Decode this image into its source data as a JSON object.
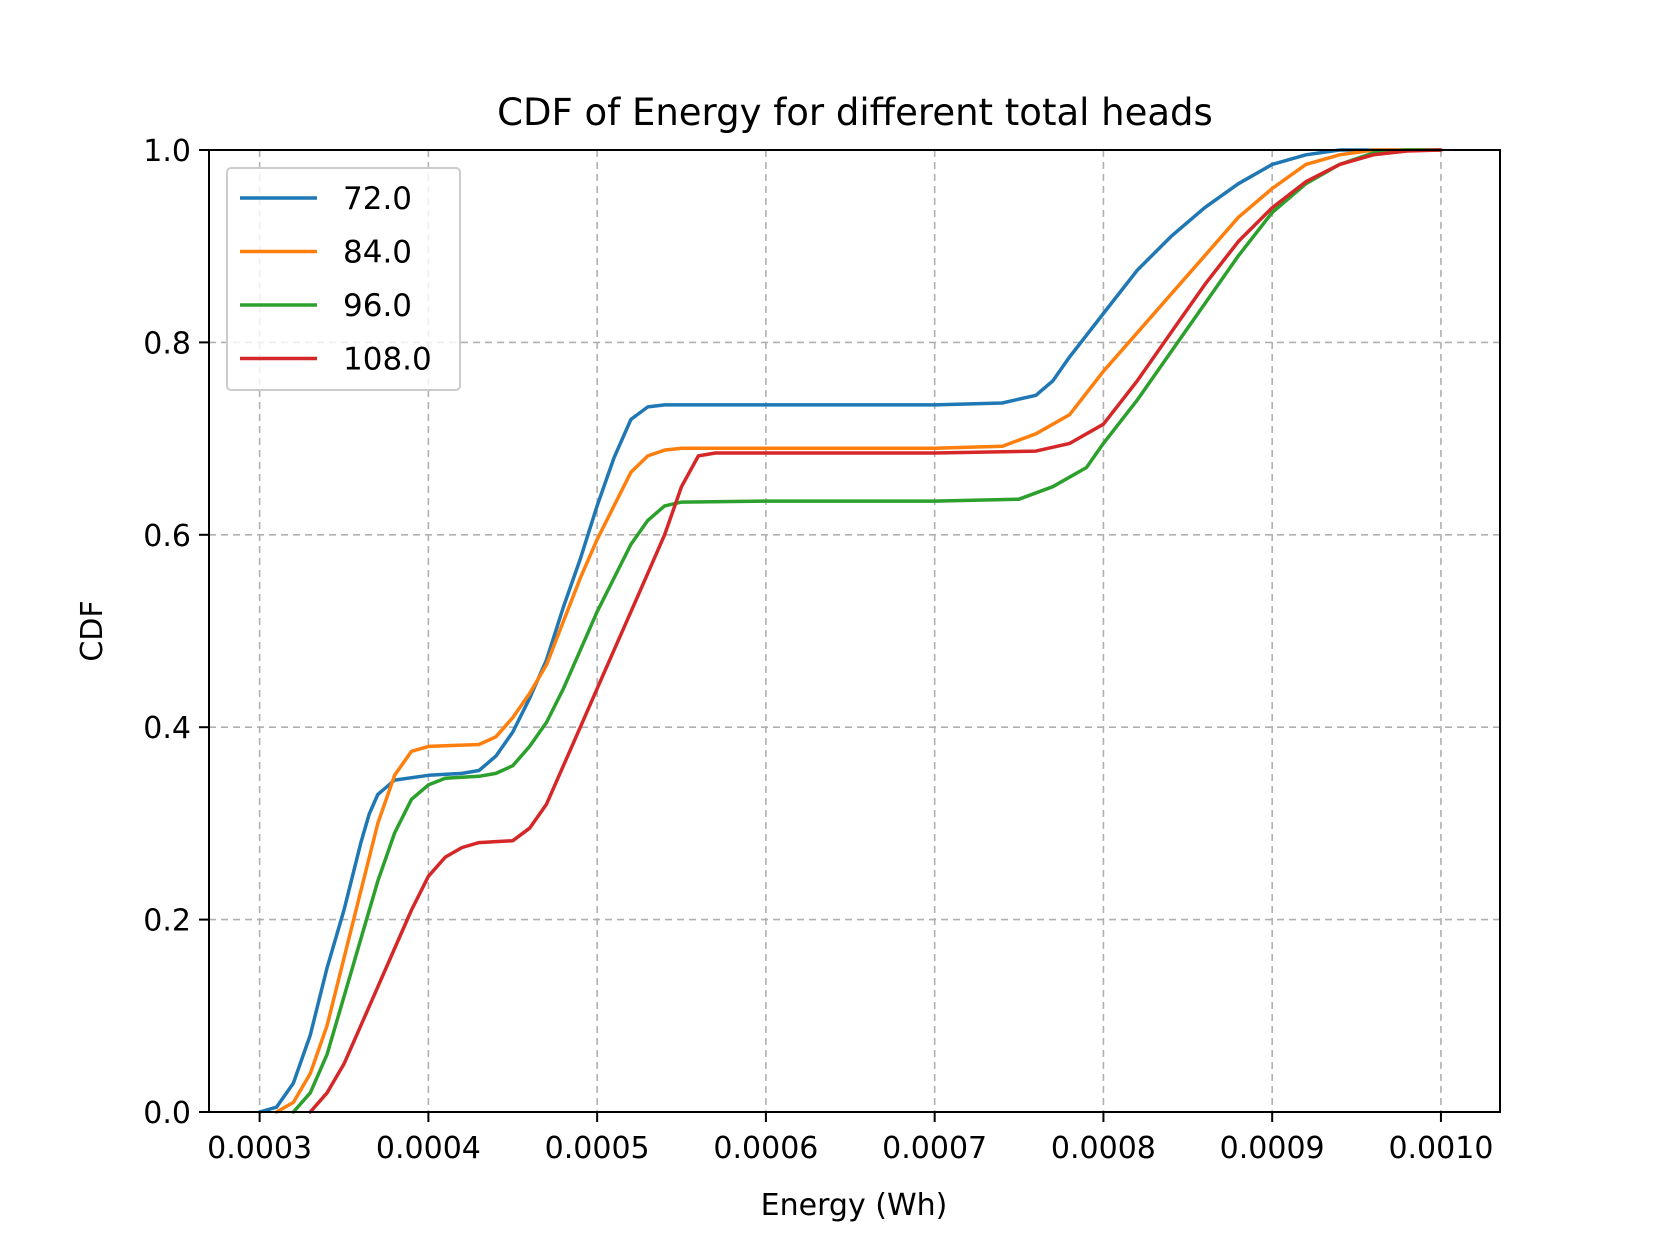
{
  "chart_data": {
    "type": "line",
    "title": "CDF of Energy for different total heads",
    "xlabel": "Energy (Wh)",
    "ylabel": "CDF",
    "xlim": [
      0.00027,
      0.001035
    ],
    "ylim": [
      0.0,
      1.0
    ],
    "x_ticks": [
      0.0003,
      0.0004,
      0.0005,
      0.0006,
      0.0007,
      0.0008,
      0.0009,
      0.001
    ],
    "x_tick_labels": [
      "0.0003",
      "0.0004",
      "0.0005",
      "0.0006",
      "0.0007",
      "0.0008",
      "0.0009",
      "0.0010"
    ],
    "y_ticks": [
      0.0,
      0.2,
      0.4,
      0.6,
      0.8,
      1.0
    ],
    "y_tick_labels": [
      "0.0",
      "0.2",
      "0.4",
      "0.6",
      "0.8",
      "1.0"
    ],
    "grid": true,
    "legend": "upper-left",
    "series": [
      {
        "name": "72.0",
        "color": "#1f77b4",
        "points": [
          [
            0.0003,
            0.0
          ],
          [
            0.00031,
            0.005
          ],
          [
            0.00032,
            0.03
          ],
          [
            0.00033,
            0.08
          ],
          [
            0.00034,
            0.15
          ],
          [
            0.00035,
            0.21
          ],
          [
            0.00036,
            0.28
          ],
          [
            0.000365,
            0.31
          ],
          [
            0.00037,
            0.33
          ],
          [
            0.00038,
            0.345
          ],
          [
            0.0004,
            0.35
          ],
          [
            0.00042,
            0.352
          ],
          [
            0.00043,
            0.355
          ],
          [
            0.00044,
            0.37
          ],
          [
            0.00045,
            0.395
          ],
          [
            0.00046,
            0.43
          ],
          [
            0.00047,
            0.47
          ],
          [
            0.00048,
            0.525
          ],
          [
            0.00049,
            0.575
          ],
          [
            0.0005,
            0.63
          ],
          [
            0.00051,
            0.68
          ],
          [
            0.00052,
            0.72
          ],
          [
            0.00053,
            0.733
          ],
          [
            0.00054,
            0.735
          ],
          [
            0.0006,
            0.735
          ],
          [
            0.0007,
            0.735
          ],
          [
            0.00074,
            0.737
          ],
          [
            0.00076,
            0.745
          ],
          [
            0.00077,
            0.76
          ],
          [
            0.00078,
            0.785
          ],
          [
            0.0008,
            0.83
          ],
          [
            0.00082,
            0.875
          ],
          [
            0.00084,
            0.91
          ],
          [
            0.00086,
            0.94
          ],
          [
            0.00088,
            0.965
          ],
          [
            0.0009,
            0.985
          ],
          [
            0.00092,
            0.995
          ],
          [
            0.00094,
            1.0
          ],
          [
            0.001,
            1.0
          ]
        ]
      },
      {
        "name": "84.0",
        "color": "#ff7f0e",
        "points": [
          [
            0.00031,
            0.0
          ],
          [
            0.00032,
            0.01
          ],
          [
            0.00033,
            0.04
          ],
          [
            0.00034,
            0.09
          ],
          [
            0.00035,
            0.16
          ],
          [
            0.00036,
            0.23
          ],
          [
            0.00037,
            0.3
          ],
          [
            0.00038,
            0.35
          ],
          [
            0.00039,
            0.375
          ],
          [
            0.0004,
            0.38
          ],
          [
            0.00043,
            0.382
          ],
          [
            0.00044,
            0.39
          ],
          [
            0.00045,
            0.41
          ],
          [
            0.00046,
            0.435
          ],
          [
            0.00047,
            0.465
          ],
          [
            0.00048,
            0.51
          ],
          [
            0.00049,
            0.555
          ],
          [
            0.0005,
            0.595
          ],
          [
            0.00051,
            0.63
          ],
          [
            0.00052,
            0.665
          ],
          [
            0.00053,
            0.682
          ],
          [
            0.00054,
            0.688
          ],
          [
            0.00055,
            0.69
          ],
          [
            0.0006,
            0.69
          ],
          [
            0.0007,
            0.69
          ],
          [
            0.00074,
            0.692
          ],
          [
            0.00076,
            0.705
          ],
          [
            0.00078,
            0.725
          ],
          [
            0.0008,
            0.77
          ],
          [
            0.00082,
            0.81
          ],
          [
            0.00084,
            0.85
          ],
          [
            0.00086,
            0.89
          ],
          [
            0.00088,
            0.93
          ],
          [
            0.0009,
            0.96
          ],
          [
            0.00092,
            0.985
          ],
          [
            0.00094,
            0.995
          ],
          [
            0.00096,
            1.0
          ],
          [
            0.001,
            1.0
          ]
        ]
      },
      {
        "name": "96.0",
        "color": "#2ca02c",
        "points": [
          [
            0.00032,
            0.0
          ],
          [
            0.00033,
            0.02
          ],
          [
            0.00034,
            0.06
          ],
          [
            0.00035,
            0.12
          ],
          [
            0.00036,
            0.18
          ],
          [
            0.00037,
            0.24
          ],
          [
            0.00038,
            0.29
          ],
          [
            0.00039,
            0.325
          ],
          [
            0.0004,
            0.34
          ],
          [
            0.00041,
            0.347
          ],
          [
            0.00043,
            0.349
          ],
          [
            0.00044,
            0.352
          ],
          [
            0.00045,
            0.36
          ],
          [
            0.00046,
            0.38
          ],
          [
            0.00047,
            0.405
          ],
          [
            0.00048,
            0.44
          ],
          [
            0.00049,
            0.48
          ],
          [
            0.0005,
            0.52
          ],
          [
            0.00051,
            0.555
          ],
          [
            0.00052,
            0.59
          ],
          [
            0.00053,
            0.615
          ],
          [
            0.00054,
            0.63
          ],
          [
            0.00055,
            0.634
          ],
          [
            0.0006,
            0.635
          ],
          [
            0.0007,
            0.635
          ],
          [
            0.00075,
            0.637
          ],
          [
            0.00077,
            0.65
          ],
          [
            0.00079,
            0.67
          ],
          [
            0.0008,
            0.695
          ],
          [
            0.00082,
            0.74
          ],
          [
            0.00084,
            0.79
          ],
          [
            0.00086,
            0.84
          ],
          [
            0.00088,
            0.89
          ],
          [
            0.0009,
            0.935
          ],
          [
            0.00092,
            0.965
          ],
          [
            0.00094,
            0.985
          ],
          [
            0.00096,
            0.997
          ],
          [
            0.00098,
            1.0
          ],
          [
            0.001,
            1.0
          ]
        ]
      },
      {
        "name": "108.0",
        "color": "#d62728",
        "points": [
          [
            0.00033,
            0.0
          ],
          [
            0.00034,
            0.02
          ],
          [
            0.00035,
            0.05
          ],
          [
            0.00036,
            0.09
          ],
          [
            0.00037,
            0.13
          ],
          [
            0.00038,
            0.17
          ],
          [
            0.00039,
            0.21
          ],
          [
            0.0004,
            0.245
          ],
          [
            0.00041,
            0.265
          ],
          [
            0.00042,
            0.275
          ],
          [
            0.00043,
            0.28
          ],
          [
            0.00045,
            0.282
          ],
          [
            0.00046,
            0.295
          ],
          [
            0.00047,
            0.32
          ],
          [
            0.00048,
            0.36
          ],
          [
            0.00049,
            0.4
          ],
          [
            0.0005,
            0.44
          ],
          [
            0.00051,
            0.48
          ],
          [
            0.00052,
            0.52
          ],
          [
            0.00053,
            0.56
          ],
          [
            0.00054,
            0.6
          ],
          [
            0.00055,
            0.65
          ],
          [
            0.00056,
            0.682
          ],
          [
            0.00057,
            0.685
          ],
          [
            0.0006,
            0.685
          ],
          [
            0.0007,
            0.685
          ],
          [
            0.00076,
            0.687
          ],
          [
            0.00078,
            0.695
          ],
          [
            0.0008,
            0.715
          ],
          [
            0.00082,
            0.76
          ],
          [
            0.00084,
            0.81
          ],
          [
            0.00086,
            0.86
          ],
          [
            0.00088,
            0.905
          ],
          [
            0.0009,
            0.94
          ],
          [
            0.00092,
            0.967
          ],
          [
            0.00094,
            0.985
          ],
          [
            0.00096,
            0.995
          ],
          [
            0.00098,
            0.999
          ],
          [
            0.001,
            1.0
          ]
        ]
      }
    ]
  }
}
